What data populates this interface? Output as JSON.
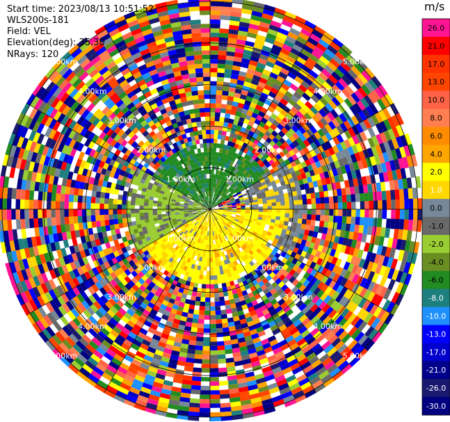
{
  "info": {
    "start_time": "Start time: 2023/08/13 10:51:52",
    "instrument": "WLS200s-181",
    "field": "Field: VEL",
    "elevation": "Elevation(deg): 35.30",
    "nrays": "NRays: 120"
  },
  "colorbar": {
    "unit": "m/s",
    "levels": [
      {
        "label": "26.0",
        "color": "#ff1493"
      },
      {
        "label": "21.0",
        "color": "#ff0000"
      },
      {
        "label": "17.0",
        "color": "#ff3300"
      },
      {
        "label": "13.0",
        "color": "#ff4500"
      },
      {
        "label": "10.0",
        "color": "#ff6347"
      },
      {
        "label": "8.0",
        "color": "#ff7f50"
      },
      {
        "label": "6.0",
        "color": "#ff8c00"
      },
      {
        "label": "4.0",
        "color": "#ffa500"
      },
      {
        "label": "2.0",
        "color": "#ffff00"
      },
      {
        "label": "1.0",
        "color": "#ffd700"
      },
      {
        "label": "0.0",
        "color": "#778899"
      },
      {
        "label": "-1.0",
        "color": "#696969"
      },
      {
        "label": "-2.0",
        "color": "#9acd32"
      },
      {
        "label": "-4.0",
        "color": "#6b8e23"
      },
      {
        "label": "-6.0",
        "color": "#228b22"
      },
      {
        "label": "-8.0",
        "color": "#1e7f7f"
      },
      {
        "label": "-10.0",
        "color": "#1e90ff"
      },
      {
        "label": "-13.0",
        "color": "#0000ff"
      },
      {
        "label": "-17.0",
        "color": "#0000cd"
      },
      {
        "label": "-21.0",
        "color": "#00008b"
      },
      {
        "label": "-26.0",
        "color": "#191970"
      },
      {
        "label": "-30.0",
        "color": "#000080"
      }
    ],
    "end_labels": [
      "26.0",
      "-30.0"
    ]
  },
  "chart_data": {
    "type": "ppi-radar",
    "field": "VEL",
    "units": "m/s",
    "nrays": 120,
    "elevation_deg": 35.3,
    "range_ring_labels": [
      "1.00km",
      "2.00km",
      "3.00km",
      "4.00km",
      "5.00km"
    ],
    "range_rings_km": [
      1,
      2,
      3,
      4,
      5
    ],
    "max_range_km": 5.1,
    "azimuth_spokes_deg": [
      0,
      30,
      60,
      90,
      120,
      150,
      180,
      210,
      240,
      270,
      300,
      330
    ],
    "value_range": [
      -30,
      30
    ],
    "regions": [
      {
        "sector_deg": [
          300,
          60
        ],
        "range_km": [
          0,
          1.6
        ],
        "dominant_value": -6.0
      },
      {
        "sector_deg": [
          240,
          300
        ],
        "range_km": [
          0,
          2.0
        ],
        "dominant_value": -2.0
      },
      {
        "sector_deg": [
          90,
          240
        ],
        "range_km": [
          0,
          1.8
        ],
        "dominant_value": 2.0
      },
      {
        "sector_deg": [
          60,
          120
        ],
        "range_km": [
          0.8,
          2.2
        ],
        "dominant_value": 0.0
      },
      {
        "sector_deg": [
          0,
          360
        ],
        "range_km": [
          2.2,
          5.1
        ],
        "dominant_value": "noise"
      }
    ]
  }
}
